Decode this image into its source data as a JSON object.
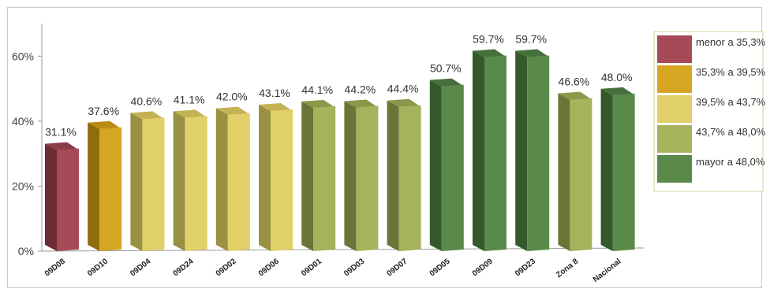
{
  "chart_data": {
    "type": "bar",
    "categories": [
      "09D08",
      "09D10",
      "09D04",
      "09D24",
      "09D02",
      "09D06",
      "09D01",
      "09D03",
      "09D07",
      "09D05",
      "09D09",
      "09D23",
      "Zona 8",
      "Nacional"
    ],
    "values": [
      31.1,
      37.6,
      40.6,
      41.1,
      42.0,
      43.1,
      44.1,
      44.2,
      44.4,
      50.7,
      59.7,
      59.7,
      46.6,
      48.0
    ],
    "value_labels": [
      "31.1%",
      "37.6%",
      "40.6%",
      "41.1%",
      "42.0%",
      "43.1%",
      "44.1%",
      "44.2%",
      "44.4%",
      "50.7%",
      "59.7%",
      "59.7%",
      "46.6%",
      "48.0%"
    ],
    "bar_class": [
      0,
      1,
      2,
      2,
      2,
      2,
      3,
      3,
      3,
      4,
      4,
      4,
      3,
      4
    ],
    "ylim": [
      0,
      70
    ],
    "yticks": [
      0,
      20,
      40,
      60
    ],
    "ytick_labels": [
      "0%",
      "20%",
      "40%",
      "60%"
    ],
    "title": "",
    "xlabel": "",
    "ylabel": "",
    "grid": false,
    "legend": {
      "position": "right",
      "entries": [
        {
          "label": "menor a 35,3%",
          "color": "#a64a57"
        },
        {
          "label": "35,3% a 39,5%",
          "color": "#d6a521"
        },
        {
          "label": "39,5% a 43,7%",
          "color": "#e1cf68"
        },
        {
          "label": "43,7% a 48,0%",
          "color": "#a6b25c"
        },
        {
          "label": "mayor a 48,0%",
          "color": "#5a8a4a"
        }
      ]
    }
  },
  "palette": {
    "front": [
      "#a64a57",
      "#d6a521",
      "#e1cf68",
      "#a6b25c",
      "#5a8a4a"
    ],
    "side": [
      "#6e2b35",
      "#8f6c0d",
      "#999044",
      "#6c7537",
      "#345a2b"
    ],
    "top": [
      "#8a3c47",
      "#b98d14",
      "#c2b254",
      "#8c9849",
      "#46703b"
    ]
  }
}
